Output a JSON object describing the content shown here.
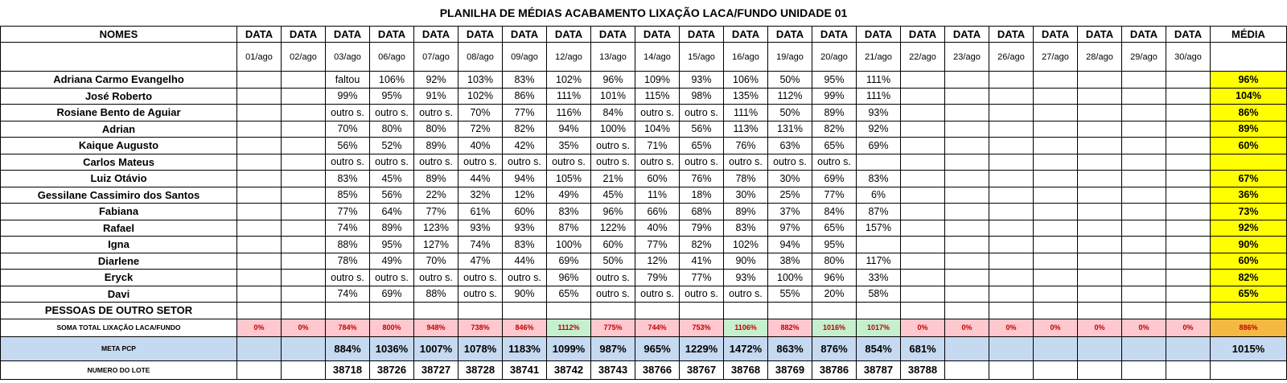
{
  "title": "PLANILHA DE MÉDIAS ACABAMENTO LIXAÇÃO LACA/FUNDO UNIDADE 01",
  "header": {
    "names_label": "NOMES",
    "data_label": "DATA",
    "media_label": "MÉDIA",
    "dates": [
      "01/ago",
      "02/ago",
      "03/ago",
      "06/ago",
      "07/ago",
      "08/ago",
      "09/ago",
      "12/ago",
      "13/ago",
      "14/ago",
      "15/ago",
      "16/ago",
      "19/ago",
      "20/ago",
      "21/ago",
      "22/ago",
      "23/ago",
      "26/ago",
      "27/ago",
      "28/ago",
      "29/ago",
      "30/ago"
    ]
  },
  "rows": [
    {
      "name": "Adriana Carmo Evangelho",
      "values": [
        "",
        "",
        "faltou",
        "106%",
        "92%",
        "103%",
        "83%",
        "102%",
        "96%",
        "109%",
        "93%",
        "106%",
        "50%",
        "95%",
        "111%",
        "",
        "",
        "",
        "",
        "",
        "",
        ""
      ],
      "media": "96%"
    },
    {
      "name": "José Roberto",
      "values": [
        "",
        "",
        "99%",
        "95%",
        "91%",
        "102%",
        "86%",
        "111%",
        "101%",
        "115%",
        "98%",
        "135%",
        "112%",
        "99%",
        "111%",
        "",
        "",
        "",
        "",
        "",
        "",
        ""
      ],
      "media": "104%"
    },
    {
      "name": "Rosiane Bento de Aguiar",
      "values": [
        "",
        "",
        "outro s.",
        "outro s.",
        "outro s.",
        "70%",
        "77%",
        "116%",
        "84%",
        "outro s.",
        "outro s.",
        "111%",
        "50%",
        "89%",
        "93%",
        "",
        "",
        "",
        "",
        "",
        "",
        ""
      ],
      "media": "86%"
    },
    {
      "name": "Adrian",
      "values": [
        "",
        "",
        "70%",
        "80%",
        "80%",
        "72%",
        "82%",
        "94%",
        "100%",
        "104%",
        "56%",
        "113%",
        "131%",
        "82%",
        "92%",
        "",
        "",
        "",
        "",
        "",
        "",
        ""
      ],
      "media": "89%"
    },
    {
      "name": "Kaique Augusto",
      "values": [
        "",
        "",
        "56%",
        "52%",
        "89%",
        "40%",
        "42%",
        "35%",
        "outro s.",
        "71%",
        "65%",
        "76%",
        "63%",
        "65%",
        "69%",
        "",
        "",
        "",
        "",
        "",
        "",
        ""
      ],
      "media": "60%"
    },
    {
      "name": "Carlos Mateus",
      "values": [
        "",
        "",
        "outro s.",
        "outro s.",
        "outro s.",
        "outro s.",
        "outro s.",
        "outro s.",
        "outro s.",
        "outro s.",
        "outro s.",
        "outro s.",
        "outro s.",
        "outro s.",
        "",
        "",
        "",
        "",
        "",
        "",
        "",
        ""
      ],
      "media": ""
    },
    {
      "name": "Luiz Otávio",
      "values": [
        "",
        "",
        "83%",
        "45%",
        "89%",
        "44%",
        "94%",
        "105%",
        "21%",
        "60%",
        "76%",
        "78%",
        "30%",
        "69%",
        "83%",
        "",
        "",
        "",
        "",
        "",
        "",
        ""
      ],
      "media": "67%"
    },
    {
      "name": "Gessilane Cassimiro dos Santos",
      "values": [
        "",
        "",
        "85%",
        "56%",
        "22%",
        "32%",
        "12%",
        "49%",
        "45%",
        "11%",
        "18%",
        "30%",
        "25%",
        "77%",
        "6%",
        "",
        "",
        "",
        "",
        "",
        "",
        ""
      ],
      "media": "36%"
    },
    {
      "name": "Fabiana",
      "values": [
        "",
        "",
        "77%",
        "64%",
        "77%",
        "61%",
        "60%",
        "83%",
        "96%",
        "66%",
        "68%",
        "89%",
        "37%",
        "84%",
        "87%",
        "",
        "",
        "",
        "",
        "",
        "",
        ""
      ],
      "media": "73%"
    },
    {
      "name": "Rafael",
      "values": [
        "",
        "",
        "74%",
        "89%",
        "123%",
        "93%",
        "93%",
        "87%",
        "122%",
        "40%",
        "79%",
        "83%",
        "97%",
        "65%",
        "157%",
        "",
        "",
        "",
        "",
        "",
        "",
        ""
      ],
      "media": "92%"
    },
    {
      "name": "Igna",
      "values": [
        "",
        "",
        "88%",
        "95%",
        "127%",
        "74%",
        "83%",
        "100%",
        "60%",
        "77%",
        "82%",
        "102%",
        "94%",
        "95%",
        "",
        "",
        "",
        "",
        "",
        "",
        "",
        ""
      ],
      "media": "90%"
    },
    {
      "name": "Diarlene",
      "values": [
        "",
        "",
        "78%",
        "49%",
        "70%",
        "47%",
        "44%",
        "69%",
        "50%",
        "12%",
        "41%",
        "90%",
        "38%",
        "80%",
        "117%",
        "",
        "",
        "",
        "",
        "",
        "",
        ""
      ],
      "media": "60%"
    },
    {
      "name": "Eryck",
      "values": [
        "",
        "",
        "outro s.",
        "outro s.",
        "outro s.",
        "outro s.",
        "outro s.",
        "96%",
        "outro s.",
        "79%",
        "77%",
        "93%",
        "100%",
        "96%",
        "33%",
        "",
        "",
        "",
        "",
        "",
        "",
        ""
      ],
      "media": "82%"
    },
    {
      "name": "Davi",
      "values": [
        "",
        "",
        "74%",
        "69%",
        "88%",
        "outro s.",
        "90%",
        "65%",
        "outro s.",
        "outro s.",
        "outro s.",
        "outro s.",
        "55%",
        "20%",
        "58%",
        "",
        "",
        "",
        "",
        "",
        "",
        ""
      ],
      "media": "65%"
    },
    {
      "name": "PESSOAS DE OUTRO SETOR",
      "values": [
        "",
        "",
        "",
        "",
        "",
        "",
        "",
        "",
        "",
        "",
        "",
        "",
        "",
        "",
        "",
        "",
        "",
        "",
        "",
        "",
        "",
        ""
      ],
      "media": ""
    }
  ],
  "soma": {
    "label": "SOMA TOTAL LIXAÇÃO LACA/FUNDO",
    "values": [
      "0%",
      "0%",
      "784%",
      "800%",
      "948%",
      "738%",
      "846%",
      "1112%",
      "775%",
      "744%",
      "753%",
      "1106%",
      "882%",
      "1016%",
      "1017%",
      "0%",
      "0%",
      "0%",
      "0%",
      "0%",
      "0%",
      "0%"
    ],
    "media": "886%"
  },
  "meta": {
    "label": "META PCP",
    "values": [
      "",
      "",
      "884%",
      "1036%",
      "1007%",
      "1078%",
      "1183%",
      "1099%",
      "987%",
      "965%",
      "1229%",
      "1472%",
      "863%",
      "876%",
      "854%",
      "681%",
      "",
      "",
      "",
      "",
      "",
      ""
    ],
    "media": "1015%"
  },
  "lote": {
    "label": "NUMERO DO LOTE",
    "values": [
      "",
      "",
      "38718",
      "38726",
      "38727",
      "38728",
      "38741",
      "38742",
      "38743",
      "38766",
      "38767",
      "38768",
      "38769",
      "38786",
      "38787",
      "38788",
      "",
      "",
      "",
      "",
      "",
      ""
    ],
    "media": ""
  },
  "colors": {
    "average": "#ffff00",
    "meta": "#c5d9f1",
    "soma_low": "#ffc7ce",
    "soma_high": "#c6efce",
    "soma_avg": "#f4b942"
  }
}
